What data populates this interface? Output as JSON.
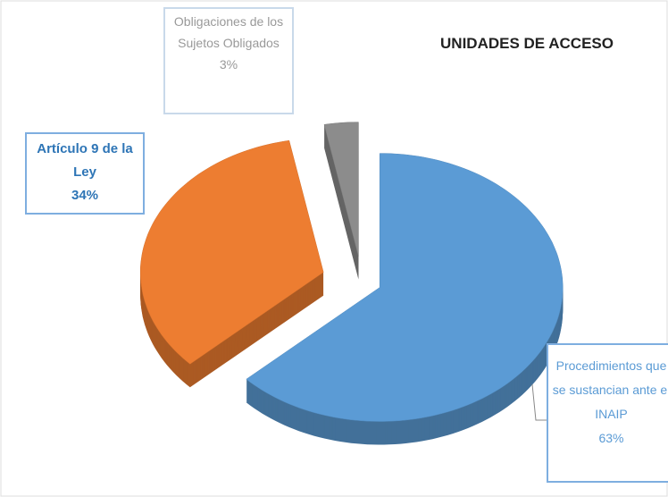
{
  "chart_data": {
    "type": "pie",
    "title": "UNIDADES DE ACCESO",
    "categories": [
      "Procedimientos que se sustancian ante el INAIP",
      "Artículo 9 de la Ley",
      "Obligaciones de los Sujetos Obligados"
    ],
    "values": [
      63,
      34,
      3
    ],
    "value_labels": [
      "63%",
      "34%",
      "3%"
    ],
    "colors": [
      "#5b9bd5",
      "#ed7d31",
      "#8c8c8c"
    ]
  }
}
